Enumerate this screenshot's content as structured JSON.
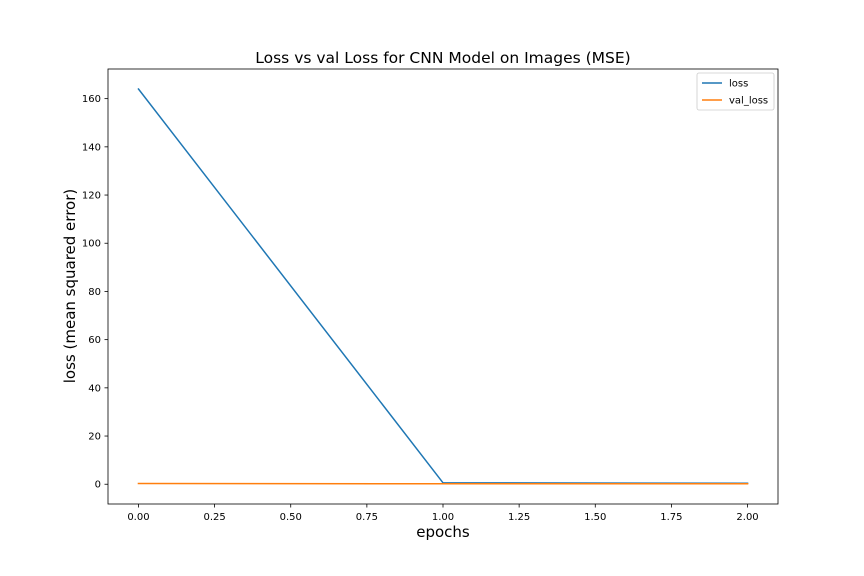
{
  "chart_data": {
    "type": "line",
    "title": "Loss vs val Loss for CNN Model on Images (MSE)",
    "xlabel": "epochs",
    "ylabel": "loss (mean squared error)",
    "xlim": [
      -0.1,
      2.1
    ],
    "ylim": [
      -8.2,
      172.3
    ],
    "x_ticks": [
      0.0,
      0.25,
      0.5,
      0.75,
      1.0,
      1.25,
      1.5,
      1.75,
      2.0
    ],
    "x_tick_labels": [
      "0.00",
      "0.25",
      "0.50",
      "0.75",
      "1.00",
      "1.25",
      "1.50",
      "1.75",
      "2.00"
    ],
    "y_ticks": [
      0,
      20,
      40,
      60,
      80,
      100,
      120,
      140,
      160
    ],
    "y_tick_labels": [
      "0",
      "20",
      "40",
      "60",
      "80",
      "100",
      "120",
      "140",
      "160"
    ],
    "grid": false,
    "legend_position": "upper right",
    "x": [
      0,
      1,
      2
    ],
    "series": [
      {
        "name": "loss",
        "values": [
          164.0,
          0.6,
          0.4
        ],
        "color": "#1f77b4"
      },
      {
        "name": "val_loss",
        "values": [
          0.3,
          0.2,
          0.2
        ],
        "color": "#ff7f0e"
      }
    ]
  }
}
